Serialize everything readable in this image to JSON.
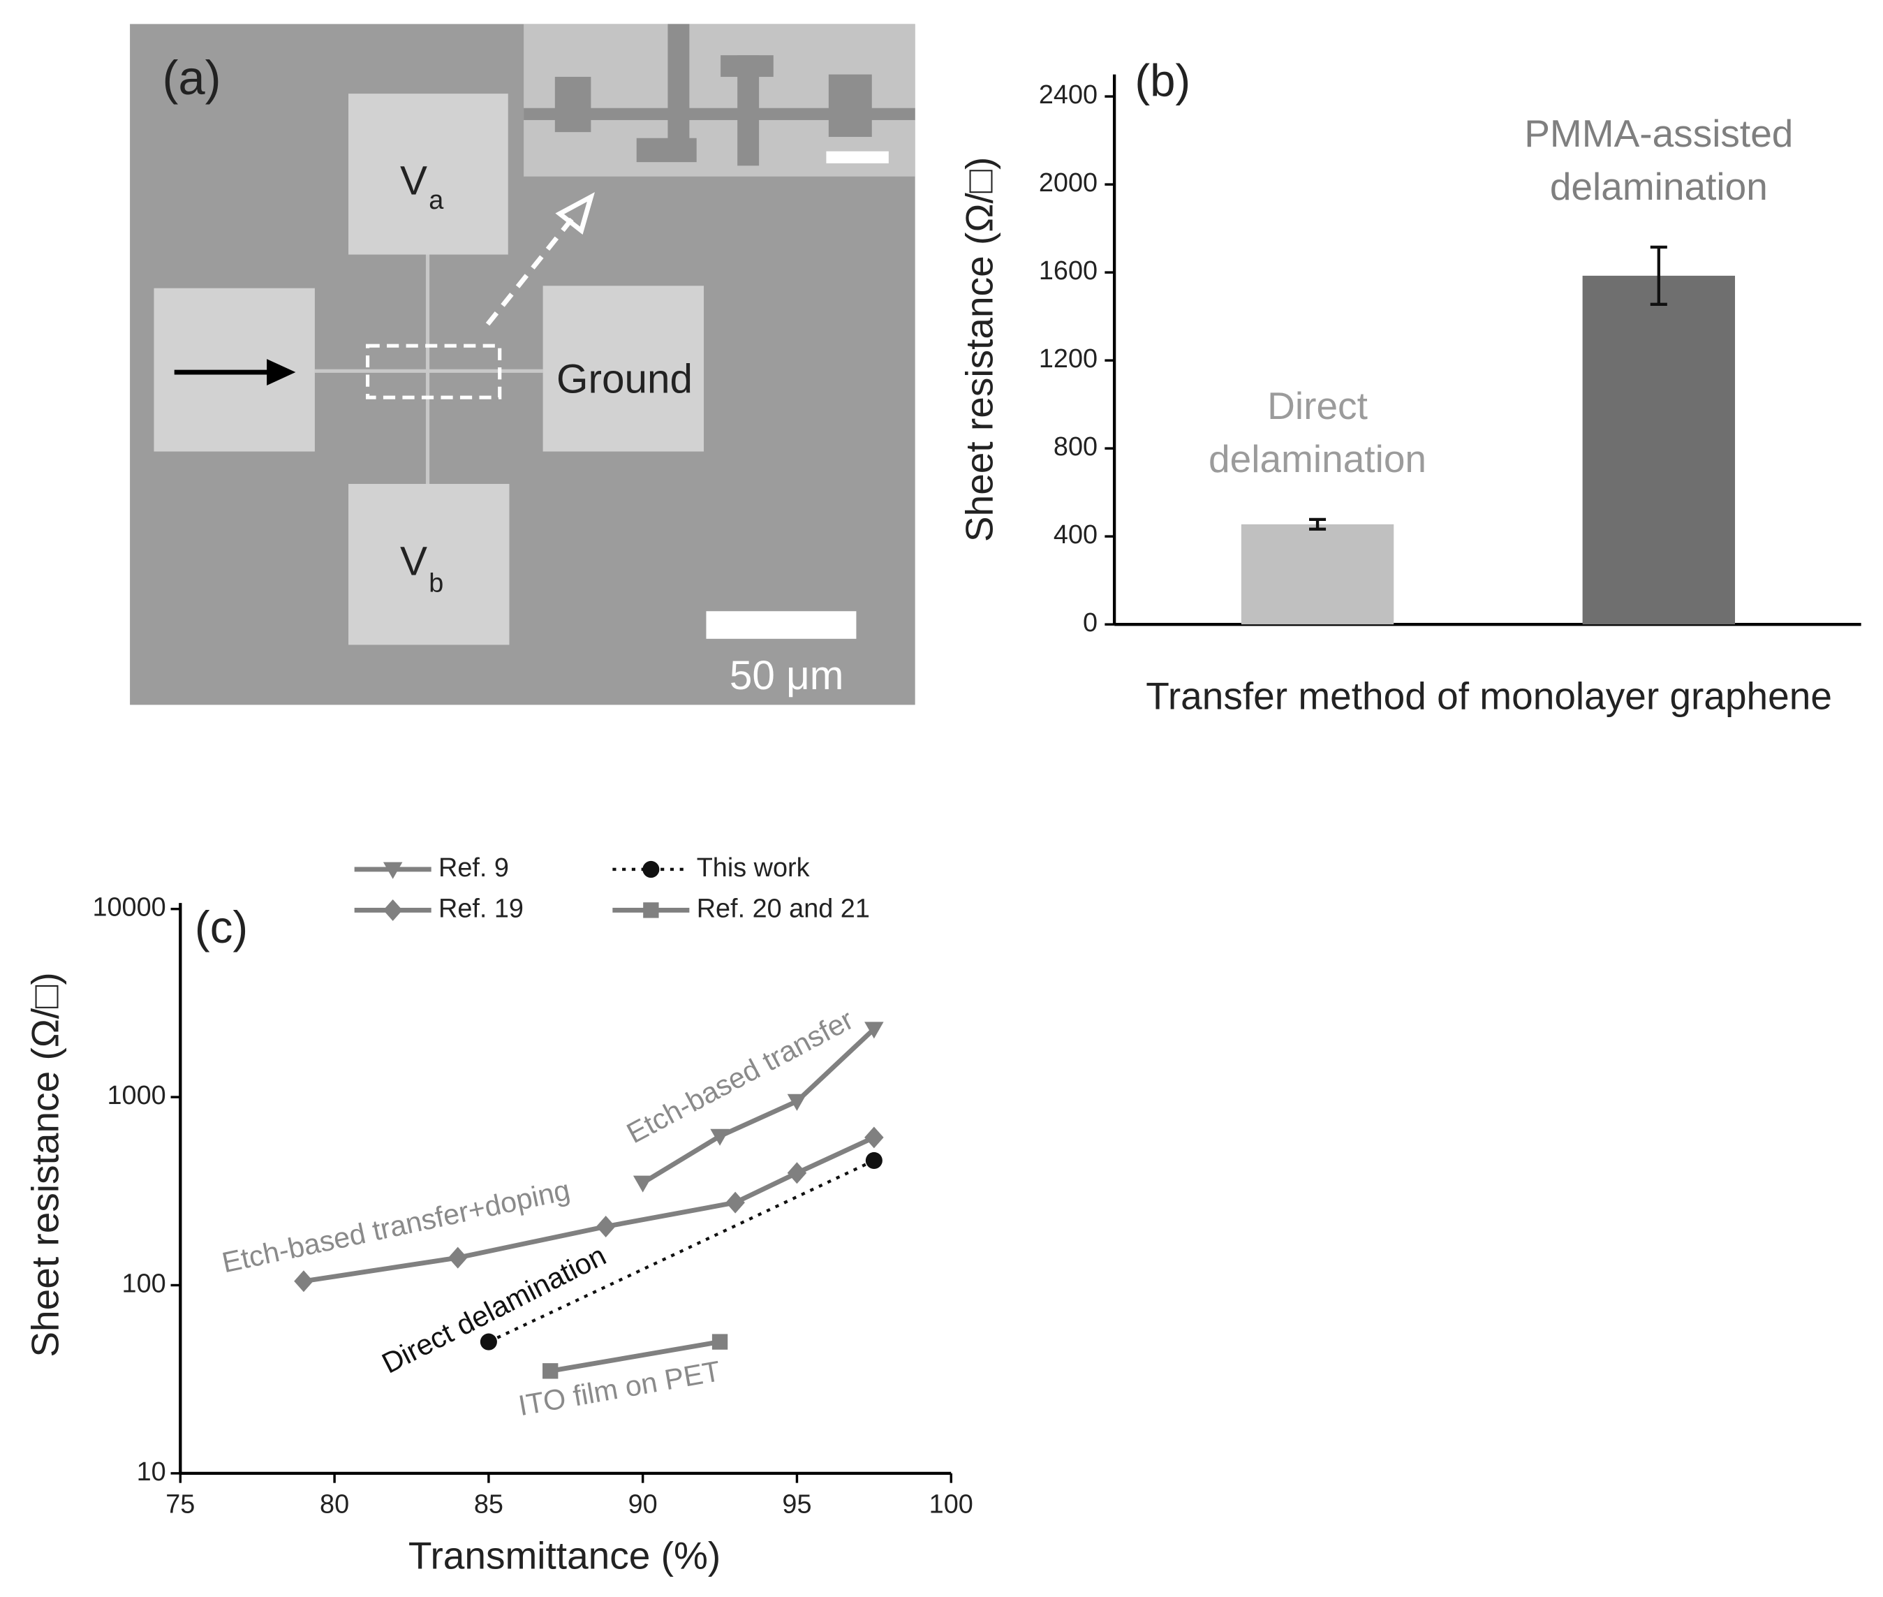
{
  "image_panel": {
    "label": "(a)",
    "pad_a": {
      "main": "V",
      "sub": "a"
    },
    "pad_b": {
      "main": "V",
      "sub": "b"
    },
    "ground": "Ground",
    "scale_bar": "50 μm"
  },
  "chart_data": [
    {
      "type": "bar",
      "panel_label": "(b)",
      "categories": [
        [
          "Direct",
          "delamination"
        ],
        [
          "PMMA-assisted",
          "delamination"
        ]
      ],
      "values": [
        455,
        1585
      ],
      "errors": [
        22,
        130
      ],
      "colors": [
        "#c0c0c0",
        "#6f6f6f"
      ],
      "label_colors": [
        "#9b9b9b",
        "#7f7f7f"
      ],
      "ylabel": "Sheet resistance (Ω/□)",
      "xlabel": "Transfer method of monolayer graphene",
      "ylim": [
        0,
        2500
      ],
      "yticks": [
        0,
        400,
        800,
        1200,
        1600,
        2000,
        2400
      ]
    },
    {
      "type": "line",
      "panel_label": "(c)",
      "xlabel": "Transmittance (%)",
      "ylabel": "Sheet resistance (Ω/□)",
      "xlim": [
        75,
        100
      ],
      "ylim": [
        10,
        10000
      ],
      "log_y": true,
      "xticks": [
        75,
        80,
        85,
        90,
        95,
        100
      ],
      "yticks": [
        10,
        100,
        1000,
        10000
      ],
      "series": [
        {
          "name": "Ref. 9",
          "color": "#808080",
          "marker": "triangle-down",
          "dash": false,
          "x": [
            90,
            92.5,
            95,
            97.5
          ],
          "values": [
            350,
            620,
            950,
            2300
          ]
        },
        {
          "name": "Ref. 19",
          "color": "#808080",
          "marker": "diamond",
          "dash": false,
          "x": [
            79,
            84,
            88.8,
            93,
            95,
            97.5
          ],
          "values": [
            105,
            140,
            205,
            275,
            395,
            610
          ]
        },
        {
          "name": "This work",
          "color": "#111111",
          "marker": "circle",
          "dash": true,
          "x": [
            85,
            97.5
          ],
          "values": [
            50,
            460
          ]
        },
        {
          "name": "Ref. 20 and 21",
          "color": "#808080",
          "marker": "square",
          "dash": false,
          "x": [
            87,
            92.5
          ],
          "values": [
            35,
            50
          ]
        }
      ],
      "annotations": [
        {
          "text": "Etch-based transfer",
          "color": "#8a8a8a"
        },
        {
          "text": "Etch-based transfer+doping",
          "color": "#8a8a8a"
        },
        {
          "text": "Direct delamination",
          "color": "#111111"
        },
        {
          "text": "ITO film on PET",
          "color": "#8a8a8a"
        }
      ]
    }
  ]
}
